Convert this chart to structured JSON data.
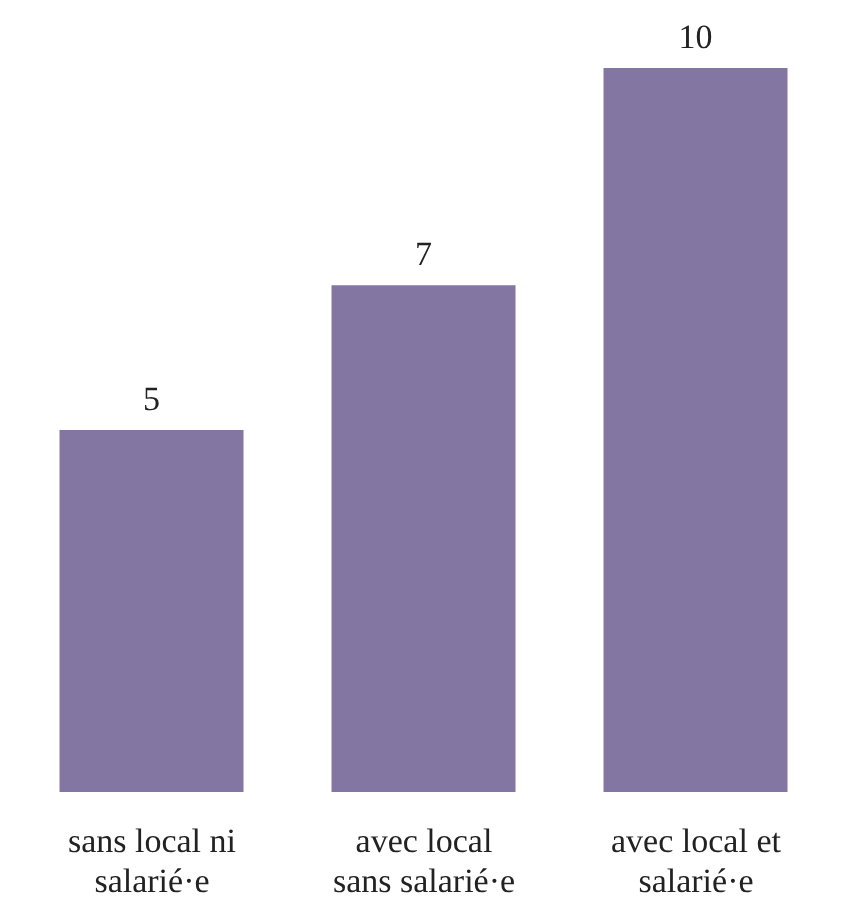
{
  "chart_data": {
    "type": "bar",
    "categories": [
      "sans local ni salarié·e",
      "avec local sans salarié·e",
      "avec local et salarié·e"
    ],
    "values": [
      5,
      7,
      10
    ],
    "color": "#8476a3",
    "data_labels": true
  }
}
